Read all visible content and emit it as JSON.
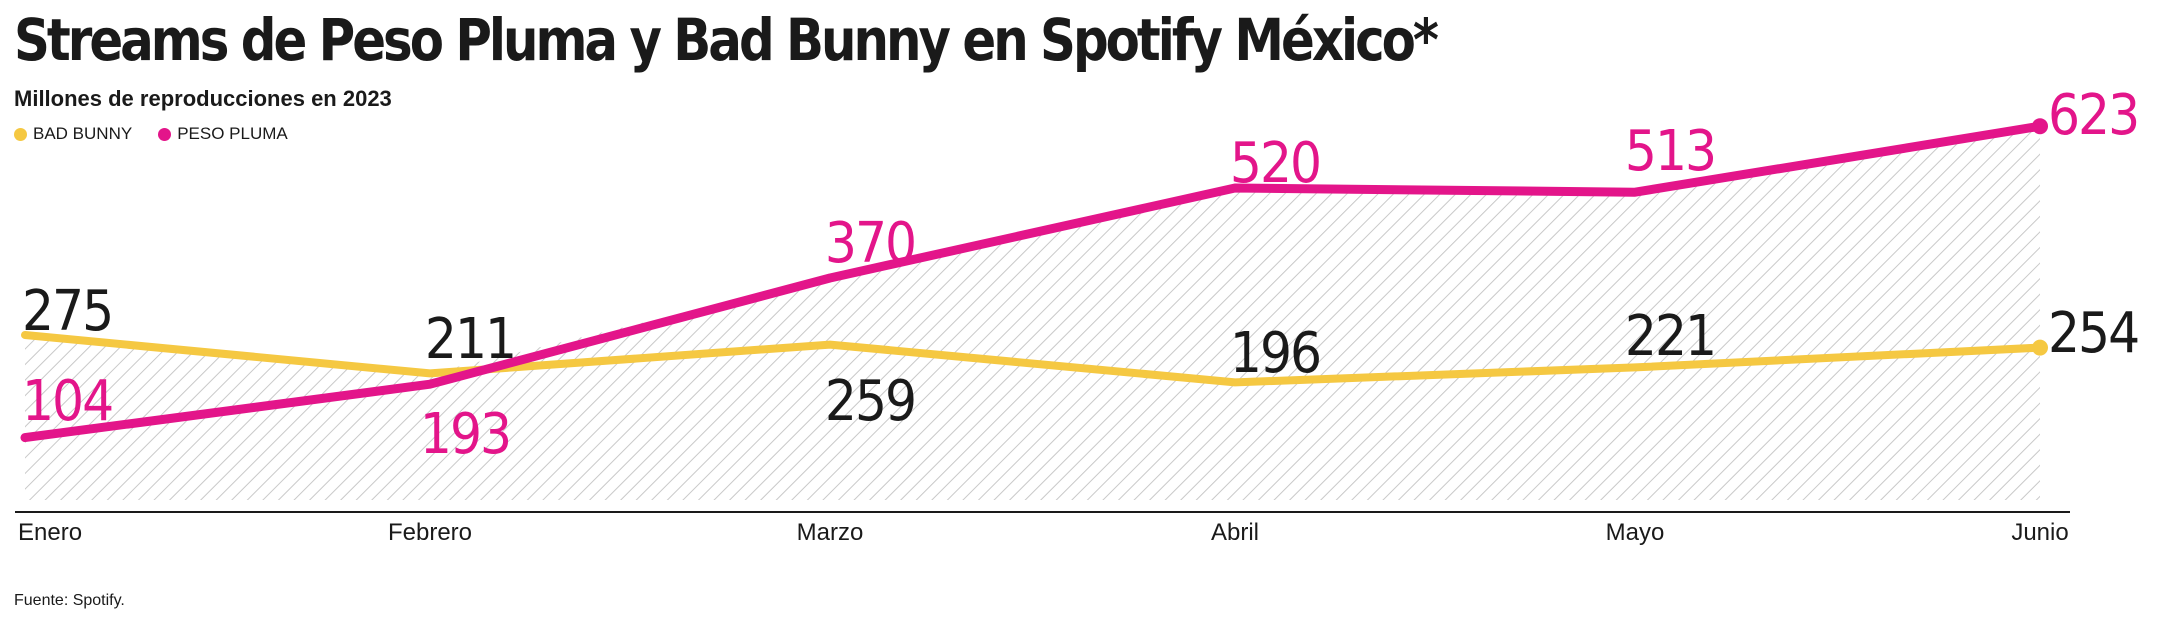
{
  "header": {
    "title": "Streams de Peso Pluma y Bad Bunny en Spotify México*",
    "subtitle": "Millones de reproducciones en 2023"
  },
  "legend": {
    "items": [
      {
        "label": "BAD BUNNY",
        "color": "#f5c842"
      },
      {
        "label": "PESO PLUMA",
        "color": "#e3158a"
      }
    ]
  },
  "footer": {
    "source": "Fuente: Spotify."
  },
  "colors": {
    "bad_bunny": "#f5c842",
    "peso_pluma": "#e3158a",
    "text": "#1a1a1a",
    "hatch": "#c9c9c9"
  },
  "chart_data": {
    "type": "line",
    "title": "Streams de Peso Pluma y Bad Bunny en Spotify México*",
    "subtitle": "Millones de reproducciones en 2023",
    "categories": [
      "Enero",
      "Febrero",
      "Marzo",
      "Abril",
      "Mayo",
      "Junio"
    ],
    "series": [
      {
        "name": "BAD BUNNY",
        "color": "#f5c842",
        "values": [
          275,
          211,
          259,
          196,
          221,
          254
        ]
      },
      {
        "name": "PESO PLUMA",
        "color": "#e3158a",
        "values": [
          104,
          193,
          370,
          520,
          513,
          623
        ]
      }
    ],
    "ylim": [
      0,
      640
    ],
    "grid": false,
    "legend_position": "top-left",
    "xlabel": "",
    "ylabel": ""
  }
}
